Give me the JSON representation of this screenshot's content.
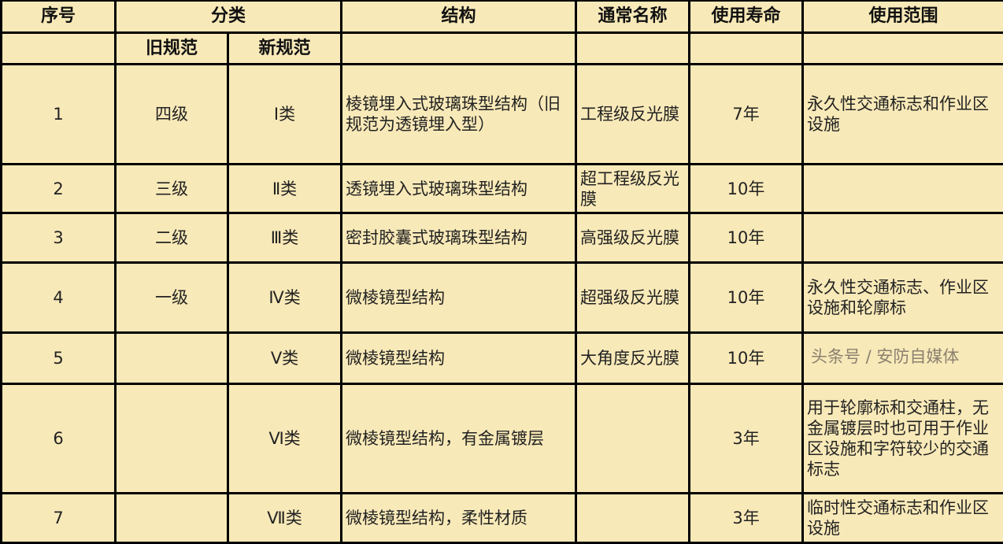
{
  "header": {
    "col_no": "序号",
    "col_class": "分类",
    "col_old": "旧规范",
    "col_new": "新规范",
    "col_structure": "结构",
    "col_name": "通常名称",
    "col_life": "使用寿命",
    "col_scope": "使用范围"
  },
  "rows": [
    {
      "no": "1",
      "old": "四级",
      "new": "Ⅰ类",
      "structure": "棱镜埋入式玻璃珠型结构（旧规范为透镜埋入型）",
      "name": "工程级反光膜",
      "life": "7年",
      "scope": "永久性交通标志和作业区设施"
    },
    {
      "no": "2",
      "old": "三级",
      "new": "Ⅱ类",
      "structure": "透镜埋入式玻璃珠型结构",
      "name": "超工程级反光膜",
      "life": "10年",
      "scope": ""
    },
    {
      "no": "3",
      "old": "二级",
      "new": "Ⅲ类",
      "structure": "密封胶囊式玻璃珠型结构",
      "name": "高强级反光膜",
      "life": "10年",
      "scope": ""
    },
    {
      "no": "4",
      "old": "一级",
      "new": "Ⅳ类",
      "structure": "微棱镜型结构",
      "name": "超强级反光膜",
      "life": "10年",
      "scope": "永久性交通标志、作业区设施和轮廓标"
    },
    {
      "no": "5",
      "old": "",
      "new": "Ⅴ类",
      "structure": "微棱镜型结构",
      "name": "大角度反光膜",
      "life": "10年",
      "scope": ""
    },
    {
      "no": "6",
      "old": "",
      "new": "Ⅵ类",
      "structure": "微棱镜型结构，有金属镀层",
      "name": "",
      "life": "3年",
      "scope": "用于轮廓标和交通柱，无金属镀层时也可用于作业区设施和字符较少的交通标志"
    },
    {
      "no": "7",
      "old": "",
      "new": "Ⅶ类",
      "structure": "微棱镜型结构，柔性材质",
      "name": "",
      "life": "3年",
      "scope": "临时性交通标志和作业区设施"
    }
  ],
  "watermark": "头条号 / 安防自媒体",
  "colors": {
    "cell_bg": "#f8e9b8",
    "border": "#000000"
  }
}
